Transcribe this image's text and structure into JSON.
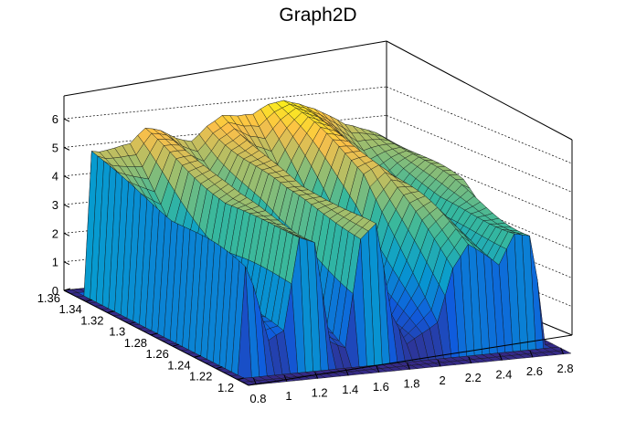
{
  "chart_data": {
    "type": "surface",
    "title": "Graph2D",
    "x_ticks": [
      "0.8",
      "1",
      "1.2",
      "1.4",
      "1.6",
      "1.8",
      "2",
      "2.2",
      "2.4",
      "2.6",
      "2.8"
    ],
    "y_ticks": [
      "1.2",
      "1.22",
      "1.24",
      "1.26",
      "1.28",
      "1.3",
      "1.32",
      "1.34",
      "1.36"
    ],
    "z_ticks": [
      "0",
      "1",
      "2",
      "3",
      "4",
      "5",
      "6"
    ],
    "xlim": [
      0.75,
      2.85
    ],
    "ylim": [
      1.19,
      1.36
    ],
    "zlim": [
      0,
      6.8
    ],
    "colormap": "parula",
    "grid": true,
    "surface_profiles_z": {
      "note_x": [
        0.8,
        0.9,
        1.0,
        1.1,
        1.2,
        1.3,
        1.4,
        1.5,
        1.6,
        1.7,
        1.8,
        1.9,
        2.0,
        2.1,
        2.2,
        2.3,
        2.4,
        2.5,
        2.6,
        2.7,
        2.8
      ],
      "back_row": [
        5.4,
        5.3,
        5.3,
        5.4,
        5.5,
        5.5,
        5.6,
        5.7,
        5.9,
        6.1,
        6.2,
        6.4,
        6.5,
        6.4,
        6.2,
        5.9,
        5.5,
        5.1,
        4.8,
        4.7,
        4.6
      ],
      "mid_row": [
        4.6,
        3.4,
        2.6,
        1.6,
        4.6,
        4.7,
        3.2,
        2.4,
        4.6,
        4.8,
        2.6,
        1.0,
        3.0,
        5.0,
        5.2,
        4.8,
        4.0,
        3.2,
        4.0,
        4.4,
        4.2
      ],
      "front_row": [
        4.5,
        3.0,
        0.6,
        1.2,
        4.6,
        4.5,
        0.6,
        0.4,
        4.3,
        4.6,
        1.0,
        0.1,
        0.2,
        0.3,
        2.6,
        3.6,
        3.2,
        2.8,
        4.0,
        3.9,
        0.2
      ]
    }
  }
}
